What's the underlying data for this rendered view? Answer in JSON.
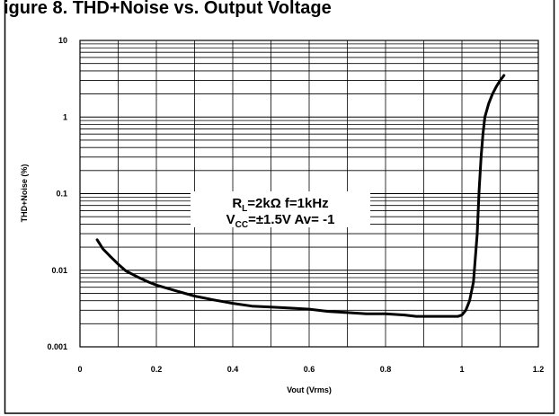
{
  "chart_data": {
    "type": "line",
    "title": "igure 8. THD+Noise vs. Output Voltage",
    "xlabel": "Vout (Vrms)",
    "ylabel": "THD+Noise (%)",
    "xlim": [
      0,
      1.2
    ],
    "ylim": [
      0.001,
      10
    ],
    "yscale": "log",
    "x_ticks": [
      "0",
      "0.2",
      "0.4",
      "0.6",
      "0.8",
      "1",
      "1.2"
    ],
    "y_ticks": [
      "0.001",
      "0.01",
      "0.1",
      "1",
      "10"
    ],
    "grid": true,
    "annotation": {
      "line1": {
        "main": "R",
        "sub": "L",
        "rest": "=2kΩ  f=1kHz"
      },
      "line2": {
        "main": "V",
        "sub": "CC",
        "rest": "=±1.5V  Av= -1"
      }
    },
    "series": [
      {
        "x": [
          0.045,
          0.06,
          0.08,
          0.1,
          0.12,
          0.15,
          0.18,
          0.2,
          0.25,
          0.3,
          0.35,
          0.4,
          0.45,
          0.5,
          0.55,
          0.6,
          0.65,
          0.7,
          0.75,
          0.8,
          0.85,
          0.88,
          0.9,
          0.93,
          0.95,
          0.97,
          0.99,
          1.0,
          1.01,
          1.02,
          1.03,
          1.04,
          1.045,
          1.05,
          1.055,
          1.06,
          1.07,
          1.08,
          1.09,
          1.1,
          1.11
        ],
        "y": [
          0.025,
          0.019,
          0.015,
          0.012,
          0.0098,
          0.0082,
          0.007,
          0.0064,
          0.0054,
          0.0046,
          0.0041,
          0.0037,
          0.0034,
          0.0033,
          0.0032,
          0.0031,
          0.0029,
          0.0028,
          0.0027,
          0.0027,
          0.0026,
          0.0025,
          0.0025,
          0.0025,
          0.0025,
          0.0025,
          0.0025,
          0.0026,
          0.003,
          0.004,
          0.007,
          0.03,
          0.11,
          0.3,
          0.6,
          1.0,
          1.5,
          2.0,
          2.5,
          3.0,
          3.5
        ]
      }
    ]
  }
}
